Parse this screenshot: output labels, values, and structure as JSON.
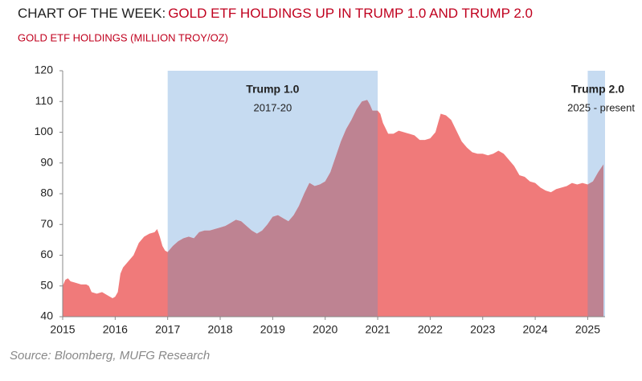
{
  "chart_data": {
    "type": "area",
    "title_prefix": "CHART OF THE WEEK:",
    "title": "GOLD ETF HOLDINGS UP IN TRUMP 1.0 AND TRUMP 2.0",
    "subtitle": "GOLD ETF HOLDINGS (MILLION TROY/OZ)",
    "source": "Source: Bloomberg, MUFG Research",
    "color": "#f07a7a",
    "xlim": [
      2015,
      2025.33
    ],
    "xticks": [
      2015,
      2016,
      2017,
      2018,
      2019,
      2020,
      2021,
      2022,
      2023,
      2024,
      2025
    ],
    "ylim": [
      40,
      120
    ],
    "yticks": [
      40,
      50,
      60,
      70,
      80,
      90,
      100,
      110,
      120
    ],
    "shaded_regions": [
      {
        "label": "Trump 1.0",
        "sublabel": "2017-20",
        "start": 2017,
        "end": 2021,
        "color": "#c6dbf1",
        "overlap_color": "#be8392"
      },
      {
        "label": "Trump 2.0",
        "sublabel": "2025 - present",
        "start": 2025,
        "end": 2025.33,
        "color": "#c6dbf1",
        "overlap_color": "#be8392"
      }
    ],
    "x": [
      2015.0,
      2015.05,
      2015.1,
      2015.15,
      2015.25,
      2015.35,
      2015.45,
      2015.5,
      2015.55,
      2015.65,
      2015.75,
      2015.85,
      2015.95,
      2016.0,
      2016.05,
      2016.1,
      2016.15,
      2016.25,
      2016.35,
      2016.45,
      2016.55,
      2016.65,
      2016.75,
      2016.8,
      2016.85,
      2016.9,
      2016.95,
      2017.0,
      2017.1,
      2017.2,
      2017.3,
      2017.4,
      2017.5,
      2017.6,
      2017.7,
      2017.8,
      2017.9,
      2018.0,
      2018.1,
      2018.2,
      2018.3,
      2018.4,
      2018.5,
      2018.6,
      2018.7,
      2018.8,
      2018.9,
      2019.0,
      2019.1,
      2019.2,
      2019.3,
      2019.4,
      2019.5,
      2019.6,
      2019.7,
      2019.8,
      2019.9,
      2020.0,
      2020.1,
      2020.2,
      2020.3,
      2020.4,
      2020.5,
      2020.6,
      2020.7,
      2020.8,
      2020.85,
      2020.9,
      2021.0,
      2021.05,
      2021.1,
      2021.2,
      2021.3,
      2021.4,
      2021.5,
      2021.6,
      2021.7,
      2021.8,
      2021.9,
      2022.0,
      2022.1,
      2022.2,
      2022.3,
      2022.4,
      2022.5,
      2022.6,
      2022.7,
      2022.8,
      2022.9,
      2023.0,
      2023.1,
      2023.2,
      2023.3,
      2023.4,
      2023.5,
      2023.6,
      2023.7,
      2023.8,
      2023.9,
      2024.0,
      2024.1,
      2024.2,
      2024.3,
      2024.4,
      2024.5,
      2024.6,
      2024.7,
      2024.8,
      2024.9,
      2025.0,
      2025.1,
      2025.2,
      2025.3
    ],
    "values": [
      50,
      52,
      52.5,
      51.5,
      51,
      50.5,
      50.5,
      50,
      48,
      47.5,
      48,
      47,
      46,
      46.5,
      48,
      54,
      56,
      58,
      60,
      64,
      66,
      67,
      67.5,
      68.5,
      66,
      63,
      61.5,
      61,
      63,
      64.5,
      65.5,
      66,
      65.5,
      67.5,
      68,
      68,
      68.5,
      69,
      69.5,
      70.5,
      71.5,
      71,
      69.5,
      68,
      67,
      68,
      70,
      72.5,
      73,
      72,
      71,
      73,
      76,
      80,
      83.5,
      82.5,
      83,
      84,
      87,
      92,
      97,
      101,
      104,
      107.5,
      110,
      110.5,
      109,
      107,
      107,
      106,
      103,
      99.5,
      99.5,
      100.5,
      100,
      99.5,
      99,
      97.5,
      97.5,
      98,
      100,
      106,
      105.5,
      104,
      100.5,
      97,
      95,
      93.5,
      93,
      93,
      92.5,
      93,
      94,
      93,
      91,
      89,
      86,
      85.5,
      84,
      83.5,
      82,
      81,
      80.5,
      81.5,
      82,
      82.5,
      83.5,
      83,
      83.5,
      83,
      84,
      87,
      89.5
    ]
  }
}
